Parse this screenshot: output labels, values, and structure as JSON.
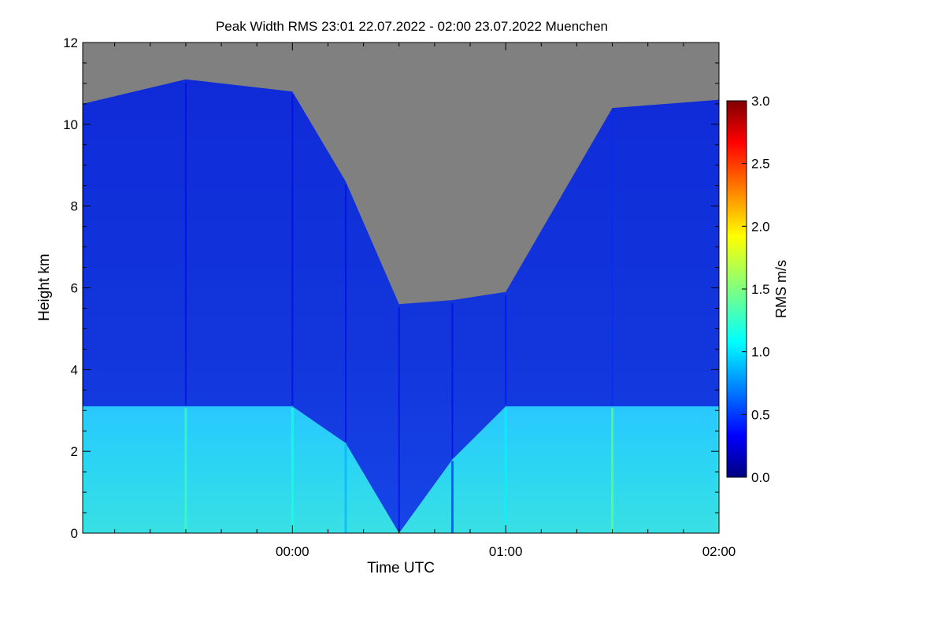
{
  "chart_data": {
    "type": "heatmap",
    "title": "Peak Width RMS   23:01 22.07.2022 - 02:00 23.07.2022 Muenchen",
    "xlabel": "Time UTC",
    "ylabel": "Height km",
    "colorbar_label": "RMS m/s",
    "x_range": [
      "23:01",
      "02:00"
    ],
    "x_ticks": [
      "00:00",
      "01:00",
      "02:00"
    ],
    "y_range": [
      0,
      12
    ],
    "y_ticks": [
      "0",
      "2",
      "4",
      "6",
      "8",
      "10",
      "12"
    ],
    "color_range": [
      0.0,
      3.0
    ],
    "colorbar_ticks": [
      "0.0",
      "0.5",
      "1.0",
      "1.5",
      "2.0",
      "2.5",
      "3.0"
    ],
    "colormap": "jet",
    "missing_color": "#808080",
    "series": [
      {
        "x": "23:01",
        "boundary_height_km": 3.1,
        "top_height_km": 10.5,
        "rms_below_boundary": 1.2,
        "rms_above_boundary": 0.3
      },
      {
        "x": "23:30",
        "boundary_height_km": 3.1,
        "top_height_km": 11.1,
        "rms_below_boundary": 1.3,
        "rms_above_boundary": 0.3
      },
      {
        "x": "00:00",
        "boundary_height_km": 3.1,
        "top_height_km": 10.8,
        "rms_below_boundary": 1.2,
        "rms_above_boundary": 0.3
      },
      {
        "x": "00:15",
        "boundary_height_km": 2.2,
        "top_height_km": 8.6,
        "rms_below_boundary": 0.9,
        "rms_above_boundary": 0.3
      },
      {
        "x": "00:30",
        "boundary_height_km": 0.0,
        "top_height_km": 5.6,
        "rms_below_boundary": 0.6,
        "rms_above_boundary": 0.3
      },
      {
        "x": "00:45",
        "boundary_height_km": 1.8,
        "top_height_km": 5.7,
        "rms_below_boundary": 0.5,
        "rms_above_boundary": 0.3
      },
      {
        "x": "01:00",
        "boundary_height_km": 3.1,
        "top_height_km": 5.9,
        "rms_below_boundary": 1.1,
        "rms_above_boundary": 0.4
      },
      {
        "x": "01:30",
        "boundary_height_km": 3.1,
        "top_height_km": 10.4,
        "rms_below_boundary": 1.4,
        "rms_above_boundary": 0.5
      },
      {
        "x": "02:00",
        "boundary_height_km": 3.1,
        "top_height_km": 10.6,
        "rms_below_boundary": 1.3,
        "rms_above_boundary": 0.5
      }
    ]
  }
}
